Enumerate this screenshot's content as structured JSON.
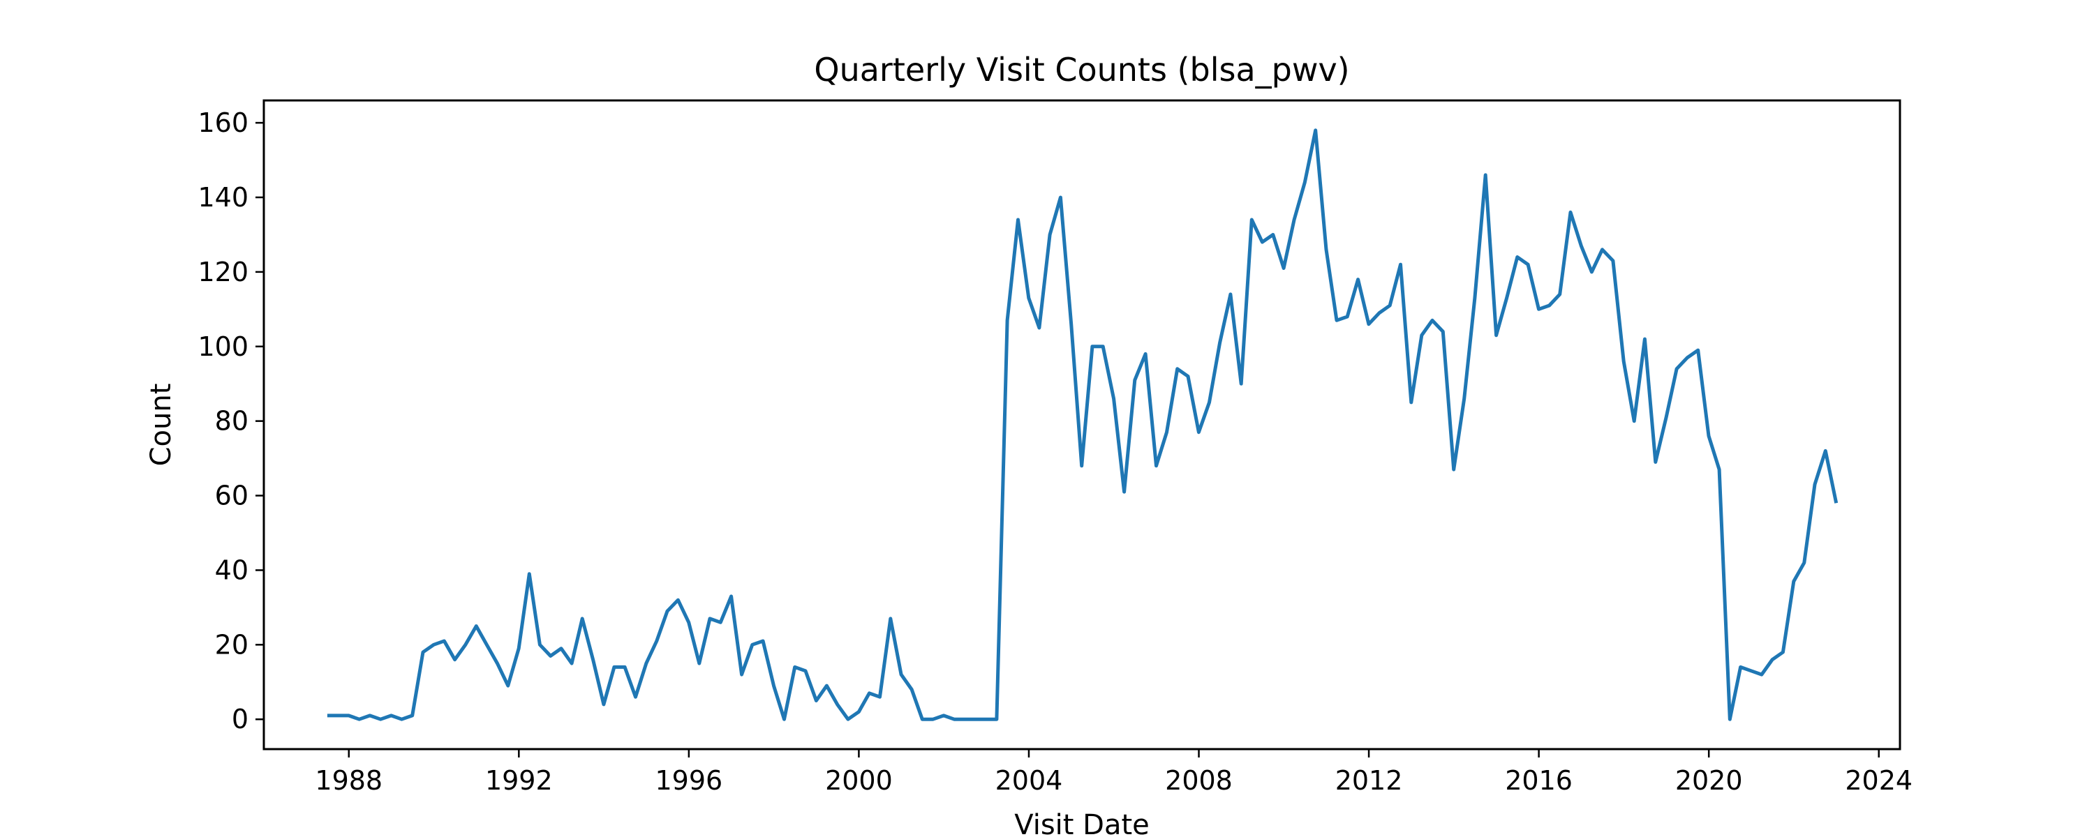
{
  "chart_data": {
    "type": "line",
    "title": "Quarterly Visit Counts (blsa_pwv)",
    "xlabel": "Visit Date",
    "ylabel": "Count",
    "x_axis_type": "date",
    "xlim": [
      "1986-01-01",
      "2024-07-01"
    ],
    "ylim": [
      -8,
      166
    ],
    "xticks": [
      "1988",
      "1992",
      "1996",
      "2000",
      "2004",
      "2008",
      "2012",
      "2016",
      "2020",
      "2024"
    ],
    "yticks": [
      0,
      20,
      40,
      60,
      80,
      100,
      120,
      140,
      160
    ],
    "grid": false,
    "legend": "none",
    "series": [
      {
        "color": "#1f77b4",
        "x": [
          "1987-06-30",
          "1987-09-30",
          "1987-12-31",
          "1988-03-31",
          "1988-06-30",
          "1988-09-30",
          "1988-12-31",
          "1989-03-31",
          "1989-06-30",
          "1989-09-30",
          "1989-12-31",
          "1990-03-31",
          "1990-06-30",
          "1990-09-30",
          "1990-12-31",
          "1991-03-31",
          "1991-06-30",
          "1991-09-30",
          "1991-12-31",
          "1992-03-31",
          "1992-06-30",
          "1992-09-30",
          "1992-12-31",
          "1993-03-31",
          "1993-06-30",
          "1993-09-30",
          "1993-12-31",
          "1994-03-31",
          "1994-06-30",
          "1994-09-30",
          "1994-12-31",
          "1995-03-31",
          "1995-06-30",
          "1995-09-30",
          "1995-12-31",
          "1996-03-31",
          "1996-06-30",
          "1996-09-30",
          "1996-12-31",
          "1997-03-31",
          "1997-06-30",
          "1997-09-30",
          "1997-12-31",
          "1998-03-31",
          "1998-06-30",
          "1998-09-30",
          "1998-12-31",
          "1999-03-31",
          "1999-06-30",
          "1999-09-30",
          "1999-12-31",
          "2000-03-31",
          "2000-06-30",
          "2000-09-30",
          "2000-12-31",
          "2001-03-31",
          "2001-06-30",
          "2001-09-30",
          "2001-12-31",
          "2002-03-31",
          "2002-06-30",
          "2002-09-30",
          "2002-12-31",
          "2003-03-31",
          "2003-06-30",
          "2003-09-30",
          "2003-12-31",
          "2004-03-31",
          "2004-06-30",
          "2004-09-30",
          "2004-12-31",
          "2005-03-31",
          "2005-06-30",
          "2005-09-30",
          "2005-12-31",
          "2006-03-31",
          "2006-06-30",
          "2006-09-30",
          "2006-12-31",
          "2007-03-31",
          "2007-06-30",
          "2007-09-30",
          "2007-12-31",
          "2008-03-31",
          "2008-06-30",
          "2008-09-30",
          "2008-12-31",
          "2009-03-31",
          "2009-06-30",
          "2009-09-30",
          "2009-12-31",
          "2010-03-31",
          "2010-06-30",
          "2010-09-30",
          "2010-12-31",
          "2011-03-31",
          "2011-06-30",
          "2011-09-30",
          "2011-12-31",
          "2012-03-31",
          "2012-06-30",
          "2012-09-30",
          "2012-12-31",
          "2013-03-31",
          "2013-06-30",
          "2013-09-30",
          "2013-12-31",
          "2014-03-31",
          "2014-06-30",
          "2014-09-30",
          "2014-12-31",
          "2015-03-31",
          "2015-06-30",
          "2015-09-30",
          "2015-12-31",
          "2016-03-31",
          "2016-06-30",
          "2016-09-30",
          "2016-12-31",
          "2017-03-31",
          "2017-06-30",
          "2017-09-30",
          "2017-12-31",
          "2018-03-31",
          "2018-06-30",
          "2018-09-30",
          "2018-12-31",
          "2019-03-31",
          "2019-06-30",
          "2019-09-30",
          "2019-12-31",
          "2020-03-31",
          "2020-06-30",
          "2020-09-30",
          "2020-12-31",
          "2021-03-31",
          "2021-06-30",
          "2021-09-30",
          "2021-12-31",
          "2022-03-31",
          "2022-06-30",
          "2022-09-30",
          "2022-12-31"
        ],
        "values": [
          1,
          1,
          1,
          0,
          1,
          0,
          1,
          0,
          1,
          18,
          20,
          21,
          16,
          20,
          25,
          20,
          15,
          9,
          19,
          39,
          20,
          17,
          19,
          15,
          27,
          16,
          4,
          14,
          14,
          6,
          15,
          21,
          29,
          32,
          26,
          15,
          27,
          26,
          33,
          12,
          20,
          21,
          9,
          0,
          14,
          13,
          5,
          9,
          4,
          0,
          2,
          7,
          6,
          27,
          12,
          8,
          0,
          0,
          1,
          0,
          0,
          0,
          0,
          0,
          107,
          134,
          113,
          105,
          130,
          140,
          106,
          68,
          100,
          100,
          86,
          61,
          91,
          98,
          68,
          77,
          94,
          92,
          77,
          85,
          101,
          114,
          90,
          134,
          128,
          130,
          121,
          134,
          144,
          158,
          126,
          107,
          108,
          118,
          106,
          109,
          111,
          122,
          85,
          103,
          107,
          104,
          67,
          86,
          113,
          146,
          103,
          113,
          124,
          122,
          110,
          111,
          114,
          136,
          127,
          120,
          126,
          123,
          96,
          80,
          102,
          69,
          81,
          94,
          97,
          99,
          76,
          67,
          0,
          14,
          13,
          12,
          16,
          18,
          37,
          42,
          63,
          72,
          58
        ]
      }
    ]
  }
}
